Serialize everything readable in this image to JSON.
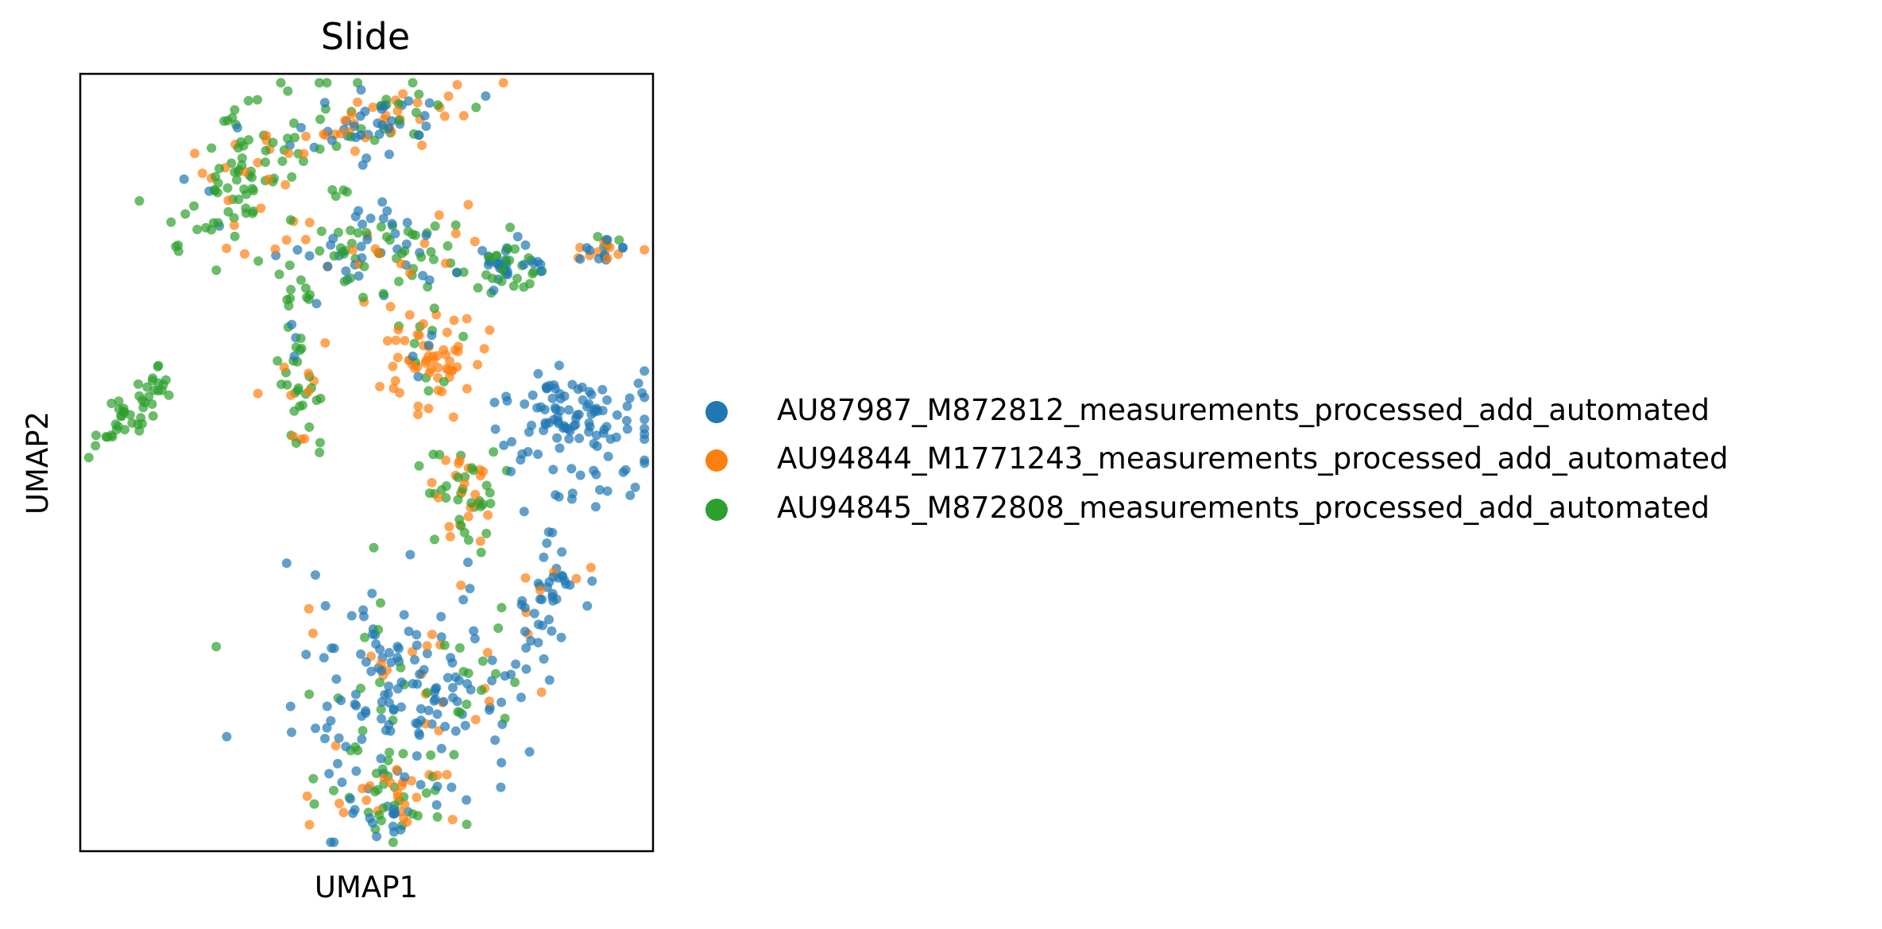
{
  "chart_data": {
    "type": "scatter",
    "title": "Slide",
    "xlabel": "UMAP1",
    "ylabel": "UMAP2",
    "xlim": [
      0,
      10
    ],
    "ylim": [
      0,
      13
    ],
    "grid": false,
    "ticks": false,
    "legend_position": "right",
    "marker": "circle",
    "alpha": 0.7,
    "series": [
      {
        "name": "AU87987_M872812_measurements_processed_add_automated",
        "color": "#1f77b4"
      },
      {
        "name": "AU94844_M1771243_measurements_processed_add_automated",
        "color": "#ff7f0e"
      },
      {
        "name": "AU94845_M872808_measurements_processed_add_automated",
        "color": "#2ca02c"
      }
    ],
    "clusters": [
      {
        "center": [
          0.9,
          7.4
        ],
        "spread": [
          0.55,
          0.15
        ],
        "angle": 42,
        "n": 45,
        "mix": [
          0.0,
          0.0,
          1.0
        ]
      },
      {
        "center": [
          2.8,
          11.2
        ],
        "spread": [
          0.9,
          0.45
        ],
        "angle": 50,
        "n": 90,
        "mix": [
          0.05,
          0.15,
          0.8
        ]
      },
      {
        "center": [
          5.1,
          12.2
        ],
        "spread": [
          0.9,
          0.25
        ],
        "angle": 15,
        "n": 95,
        "mix": [
          0.3,
          0.4,
          0.3
        ]
      },
      {
        "center": [
          4.8,
          10.0
        ],
        "spread": [
          0.9,
          0.5
        ],
        "angle": 0,
        "n": 110,
        "mix": [
          0.35,
          0.2,
          0.45
        ]
      },
      {
        "center": [
          3.7,
          8.6
        ],
        "spread": [
          0.12,
          0.8
        ],
        "angle": 0,
        "n": 25,
        "mix": [
          0.05,
          0.1,
          0.85
        ]
      },
      {
        "center": [
          3.9,
          7.3
        ],
        "spread": [
          0.28,
          0.35
        ],
        "angle": 0,
        "n": 20,
        "mix": [
          0.0,
          0.3,
          0.7
        ]
      },
      {
        "center": [
          7.4,
          9.8
        ],
        "spread": [
          0.4,
          0.2
        ],
        "angle": 0,
        "n": 55,
        "mix": [
          0.55,
          0.0,
          0.45
        ]
      },
      {
        "center": [
          6.0,
          8.2
        ],
        "spread": [
          0.45,
          0.45
        ],
        "angle": 0,
        "n": 70,
        "mix": [
          0.1,
          0.75,
          0.15
        ]
      },
      {
        "center": [
          9.1,
          10.1
        ],
        "spread": [
          0.3,
          0.15
        ],
        "angle": 0,
        "n": 25,
        "mix": [
          0.5,
          0.4,
          0.1
        ]
      },
      {
        "center": [
          8.6,
          7.2
        ],
        "spread": [
          0.75,
          0.45
        ],
        "angle": 0,
        "n": 110,
        "mix": [
          1.0,
          0.0,
          0.0
        ]
      },
      {
        "center": [
          6.7,
          5.9
        ],
        "spread": [
          0.35,
          0.45
        ],
        "angle": 0,
        "n": 55,
        "mix": [
          0.0,
          0.35,
          0.65
        ]
      },
      {
        "center": [
          8.2,
          4.3
        ],
        "spread": [
          0.3,
          0.9
        ],
        "angle": -20,
        "n": 60,
        "mix": [
          0.8,
          0.2,
          0.0
        ]
      },
      {
        "center": [
          5.7,
          2.6
        ],
        "spread": [
          1.0,
          0.9
        ],
        "angle": 0,
        "n": 190,
        "mix": [
          0.7,
          0.12,
          0.18
        ]
      },
      {
        "center": [
          5.5,
          0.9
        ],
        "spread": [
          0.6,
          0.35
        ],
        "angle": 0,
        "n": 70,
        "mix": [
          0.25,
          0.3,
          0.45
        ]
      }
    ]
  }
}
